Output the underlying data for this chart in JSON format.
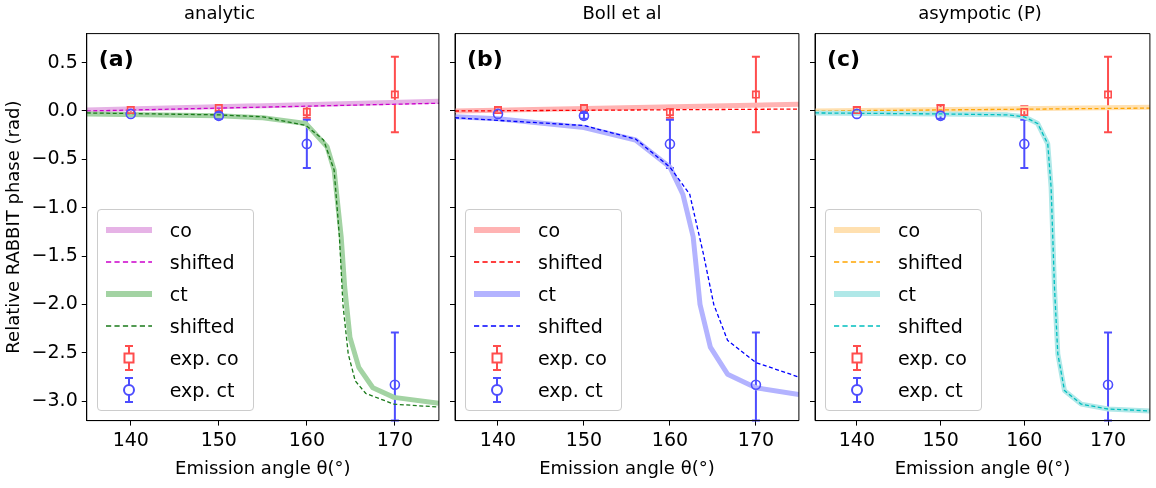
{
  "chart_data": [
    {
      "type": "line",
      "title": "analytic",
      "xlabel": "Emission angle θ(°)",
      "ylabel": "Relative RABBIT phase (rad)",
      "annotations": [
        "(a)"
      ],
      "xlim": [
        135,
        175
      ],
      "xticks": [
        140,
        150,
        160,
        170
      ],
      "ylim": [
        -3.2,
        0.8
      ],
      "yticks": [
        {
          "value": 0.5,
          "label": "0.5"
        },
        {
          "value": 0,
          "label": "0.0"
        },
        {
          "value": -0.5,
          "label": "−0.5"
        },
        {
          "value": -1,
          "label": "−1.0"
        },
        {
          "value": -1.5,
          "label": "−1.5"
        },
        {
          "value": -2,
          "label": "−2.0"
        },
        {
          "value": -2.5,
          "label": "−2.5"
        },
        {
          "value": -3,
          "label": "−3.0"
        }
      ],
      "grid": false,
      "legend": "bottom left",
      "series": [
        {
          "name": "co",
          "type": "line",
          "line_style": "solid",
          "marker": "none",
          "color": "#e6b3e6",
          "x": [
            135,
            175
          ],
          "values": [
            0.01,
            0.1
          ]
        },
        {
          "name": "shifted",
          "type": "line",
          "line_style": "dashed",
          "marker": "none",
          "color": "#cc00cc",
          "x": [
            135,
            175
          ],
          "values": [
            0.0,
            0.08
          ]
        },
        {
          "name": "ct",
          "type": "line",
          "line_style": "solid",
          "marker": "none",
          "color": "#a3d3a3",
          "x": [
            135,
            150,
            155,
            159.9,
            162.3,
            163.1,
            163.9,
            164.3,
            164.9,
            165.9,
            167.5,
            169.9,
            175
          ],
          "values": [
            -0.03,
            -0.05,
            -0.07,
            -0.13,
            -0.37,
            -0.61,
            -1.3,
            -1.82,
            -2.34,
            -2.65,
            -2.86,
            -2.96,
            -3.02
          ]
        },
        {
          "name": "shifted",
          "type": "line",
          "line_style": "dashed",
          "marker": "none",
          "color": "#1a7a1a",
          "x": [
            135,
            150,
            155,
            159.9,
            161.9,
            163.1,
            163.7,
            164.1,
            164.7,
            165.5,
            166.7,
            169.9,
            175
          ],
          "values": [
            -0.02,
            -0.04,
            -0.06,
            -0.15,
            -0.3,
            -0.61,
            -1.3,
            -2.0,
            -2.51,
            -2.79,
            -2.92,
            -3.03,
            -3.06
          ]
        },
        {
          "name": "exp. co",
          "type": "scatter",
          "marker": "square",
          "color": "#ff4d4d",
          "x": [
            140,
            150,
            160,
            170
          ],
          "values": [
            0.01,
            0.03,
            -0.01,
            0.17
          ],
          "errors": [
            0.03,
            0.03,
            0.06,
            0.39
          ]
        },
        {
          "name": "exp. ct",
          "type": "scatter",
          "marker": "circle",
          "color": "#4d4dff",
          "x": [
            140,
            150,
            160,
            170
          ],
          "values": [
            -0.03,
            -0.05,
            -0.34,
            -2.83
          ],
          "errors": [
            null,
            0.03,
            0.25,
            [
              -3.2,
              -2.29
            ]
          ]
        }
      ]
    },
    {
      "type": "line",
      "title": "Boll et al",
      "xlabel": "Emission angle θ(°)",
      "annotations": [
        "(b)"
      ],
      "xlim": [
        135,
        175
      ],
      "xticks": [
        140,
        150,
        160,
        170
      ],
      "ylim": [
        -3.2,
        0.8
      ],
      "yticks": [
        0.5,
        0.0,
        -0.5,
        -1.0,
        -1.5,
        -2.0,
        -2.5,
        -3.0
      ],
      "tick_labels": "x",
      "grid": false,
      "legend": "bottom left",
      "series": [
        {
          "name": "co",
          "type": "line",
          "line_style": "solid",
          "marker": "none",
          "color": "#ffb3b3",
          "x": [
            135,
            175
          ],
          "values": [
            0.0,
            0.07
          ]
        },
        {
          "name": "shifted",
          "type": "line",
          "line_style": "dashed",
          "marker": "none",
          "color": "#ff0000",
          "x": [
            135,
            175
          ],
          "values": [
            0.0,
            0.02
          ]
        },
        {
          "name": "ct",
          "type": "line",
          "line_style": "solid",
          "marker": "none",
          "color": "#b3b3ff",
          "x": [
            135,
            140,
            150,
            156,
            160,
            161.5,
            162.7,
            163.5,
            164.7,
            166.7,
            170,
            175
          ],
          "values": [
            -0.06,
            -0.08,
            -0.17,
            -0.3,
            -0.58,
            -0.86,
            -1.3,
            -2.0,
            -2.44,
            -2.72,
            -2.86,
            -2.93
          ]
        },
        {
          "name": "shifted",
          "type": "line",
          "line_style": "dashed",
          "marker": "none",
          "color": "#0000ff",
          "x": [
            135,
            150,
            156,
            160,
            162.3,
            163.9,
            165.1,
            166.7,
            170,
            175
          ],
          "values": [
            -0.07,
            -0.15,
            -0.29,
            -0.58,
            -0.86,
            -1.48,
            -2.0,
            -2.37,
            -2.6,
            -2.75
          ]
        },
        {
          "name": "exp. co",
          "type": "scatter",
          "marker": "square",
          "color": "#ff4d4d",
          "x": [
            140,
            150,
            160,
            170
          ],
          "values": [
            0.01,
            0.03,
            -0.01,
            0.17
          ],
          "errors": [
            0.03,
            0.03,
            0.06,
            0.39
          ]
        },
        {
          "name": "exp. ct",
          "type": "scatter",
          "marker": "circle",
          "color": "#4d4dff",
          "x": [
            140,
            150,
            160,
            170
          ],
          "values": [
            -0.03,
            -0.05,
            -0.34,
            -2.83
          ],
          "errors": [
            null,
            0.03,
            0.25,
            [
              -3.2,
              -2.29
            ]
          ]
        }
      ]
    },
    {
      "type": "line",
      "title": "asympotic (P)",
      "xlabel": "Emission angle θ(°)",
      "annotations": [
        "(c)"
      ],
      "xlim": [
        135,
        175
      ],
      "xticks": [
        140,
        150,
        160,
        170
      ],
      "ylim": [
        -3.2,
        0.8
      ],
      "yticks": [
        0.5,
        0.0,
        -0.5,
        -1.0,
        -1.5,
        -2.0,
        -2.5,
        -3.0
      ],
      "tick_labels": "x",
      "grid": false,
      "legend": "bottom left",
      "series": [
        {
          "name": "co",
          "type": "line",
          "line_style": "solid",
          "marker": "none",
          "color": "#ffe0b0",
          "x": [
            135,
            175
          ],
          "values": [
            0.0,
            0.04
          ]
        },
        {
          "name": "shifted",
          "type": "line",
          "line_style": "dashed",
          "marker": "none",
          "color": "#ffa500",
          "x": [
            135,
            175
          ],
          "values": [
            0.0,
            0.03
          ]
        },
        {
          "name": "ct",
          "type": "line",
          "line_style": "solid",
          "marker": "none",
          "color": "#b0e8e8",
          "x": [
            135,
            150,
            158,
            160,
            161.6,
            162.8,
            163.2,
            163.6,
            164,
            164.8,
            166.8,
            170,
            175
          ],
          "values": [
            -0.02,
            -0.03,
            -0.04,
            -0.06,
            -0.13,
            -0.34,
            -0.79,
            -1.82,
            -2.51,
            -2.89,
            -3.03,
            -3.08,
            -3.1
          ]
        },
        {
          "name": "shifted",
          "type": "line",
          "line_style": "dashed",
          "marker": "none",
          "color": "#00bfbf",
          "x": [
            135,
            150,
            158,
            160,
            161.6,
            162.8,
            163.2,
            163.6,
            164,
            164.8,
            166.8,
            170,
            175
          ],
          "values": [
            -0.02,
            -0.03,
            -0.04,
            -0.06,
            -0.13,
            -0.34,
            -0.79,
            -1.82,
            -2.51,
            -2.89,
            -3.03,
            -3.08,
            -3.1
          ]
        },
        {
          "name": "exp. co",
          "type": "scatter",
          "marker": "square",
          "color": "#ff4d4d",
          "x": [
            140,
            150,
            160,
            170
          ],
          "values": [
            0.01,
            0.03,
            -0.01,
            0.17
          ],
          "errors": [
            0.03,
            0.03,
            0.06,
            0.39
          ]
        },
        {
          "name": "exp. ct",
          "type": "scatter",
          "marker": "circle",
          "color": "#4d4dff",
          "x": [
            140,
            150,
            160,
            170
          ],
          "values": [
            -0.03,
            -0.05,
            -0.34,
            -2.83
          ],
          "errors": [
            null,
            0.03,
            0.25,
            [
              -3.2,
              -2.29
            ]
          ]
        }
      ]
    }
  ]
}
